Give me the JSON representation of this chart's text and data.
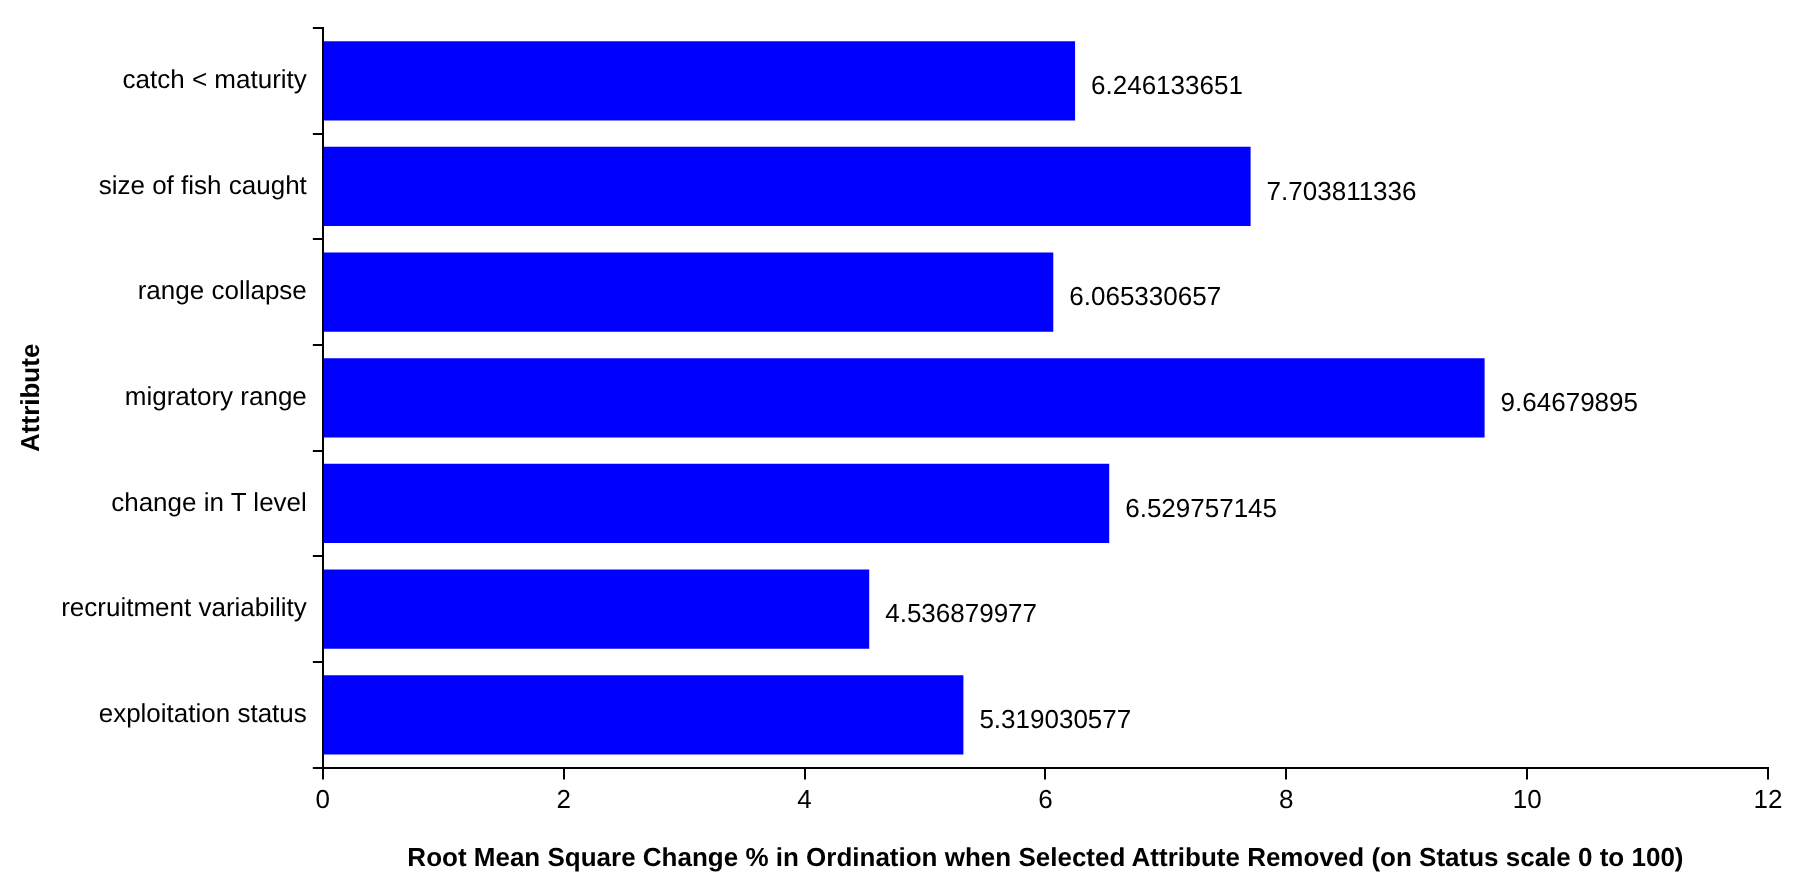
{
  "chart_data": {
    "type": "bar",
    "orientation": "horizontal",
    "xlabel": "Root Mean Square Change % in Ordination when Selected Attribute Removed (on Status scale 0 to 100)",
    "ylabel": "Attribute",
    "categories": [
      "catch < maturity",
      "size of fish caught",
      "range collapse",
      "migratory range",
      "change in T level",
      "recruitment variability",
      "exploitation status"
    ],
    "values": [
      6.246133651,
      7.703811336,
      6.065330657,
      9.64679895,
      6.529757145,
      4.536879977,
      5.319030577
    ],
    "color": "#0000ff",
    "xlim": [
      0,
      12
    ],
    "xticks": [
      0,
      2,
      4,
      6,
      8,
      10,
      12
    ],
    "grid": false,
    "legend": false,
    "data_labels": true
  }
}
